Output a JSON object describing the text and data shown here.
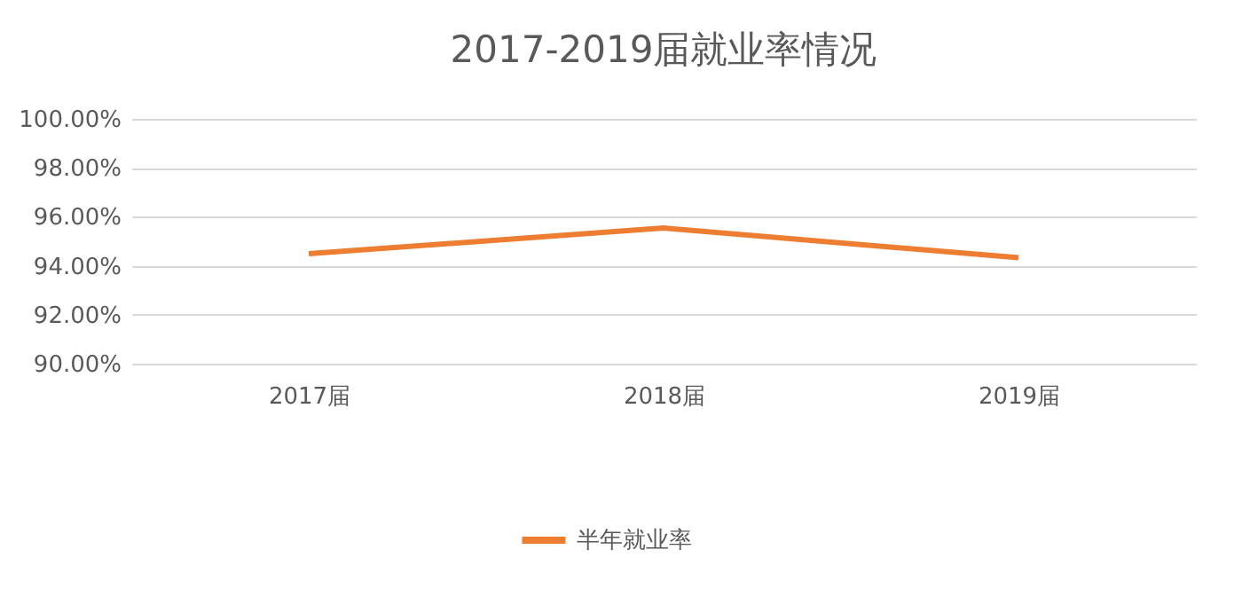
{
  "chart_data": {
    "type": "line",
    "title": "2017-2019届就业率情况",
    "categories": [
      "2017届",
      "2018届",
      "2019届"
    ],
    "series": [
      {
        "name": "半年就业率",
        "color": "#ed7d31",
        "values": [
          94.49,
          95.54,
          94.33
        ]
      }
    ],
    "ylim": [
      90,
      100
    ],
    "yticks": [
      {
        "value": 90,
        "label": "90.00%"
      },
      {
        "value": 92,
        "label": "92.00%"
      },
      {
        "value": 94,
        "label": "94.00%"
      },
      {
        "value": 96,
        "label": "96.00%"
      },
      {
        "value": 98,
        "label": "98.00%"
      },
      {
        "value": 100,
        "label": "100.00%"
      }
    ],
    "grid": "y",
    "legend": "bottom",
    "marker": "none",
    "line_style": "solid"
  }
}
